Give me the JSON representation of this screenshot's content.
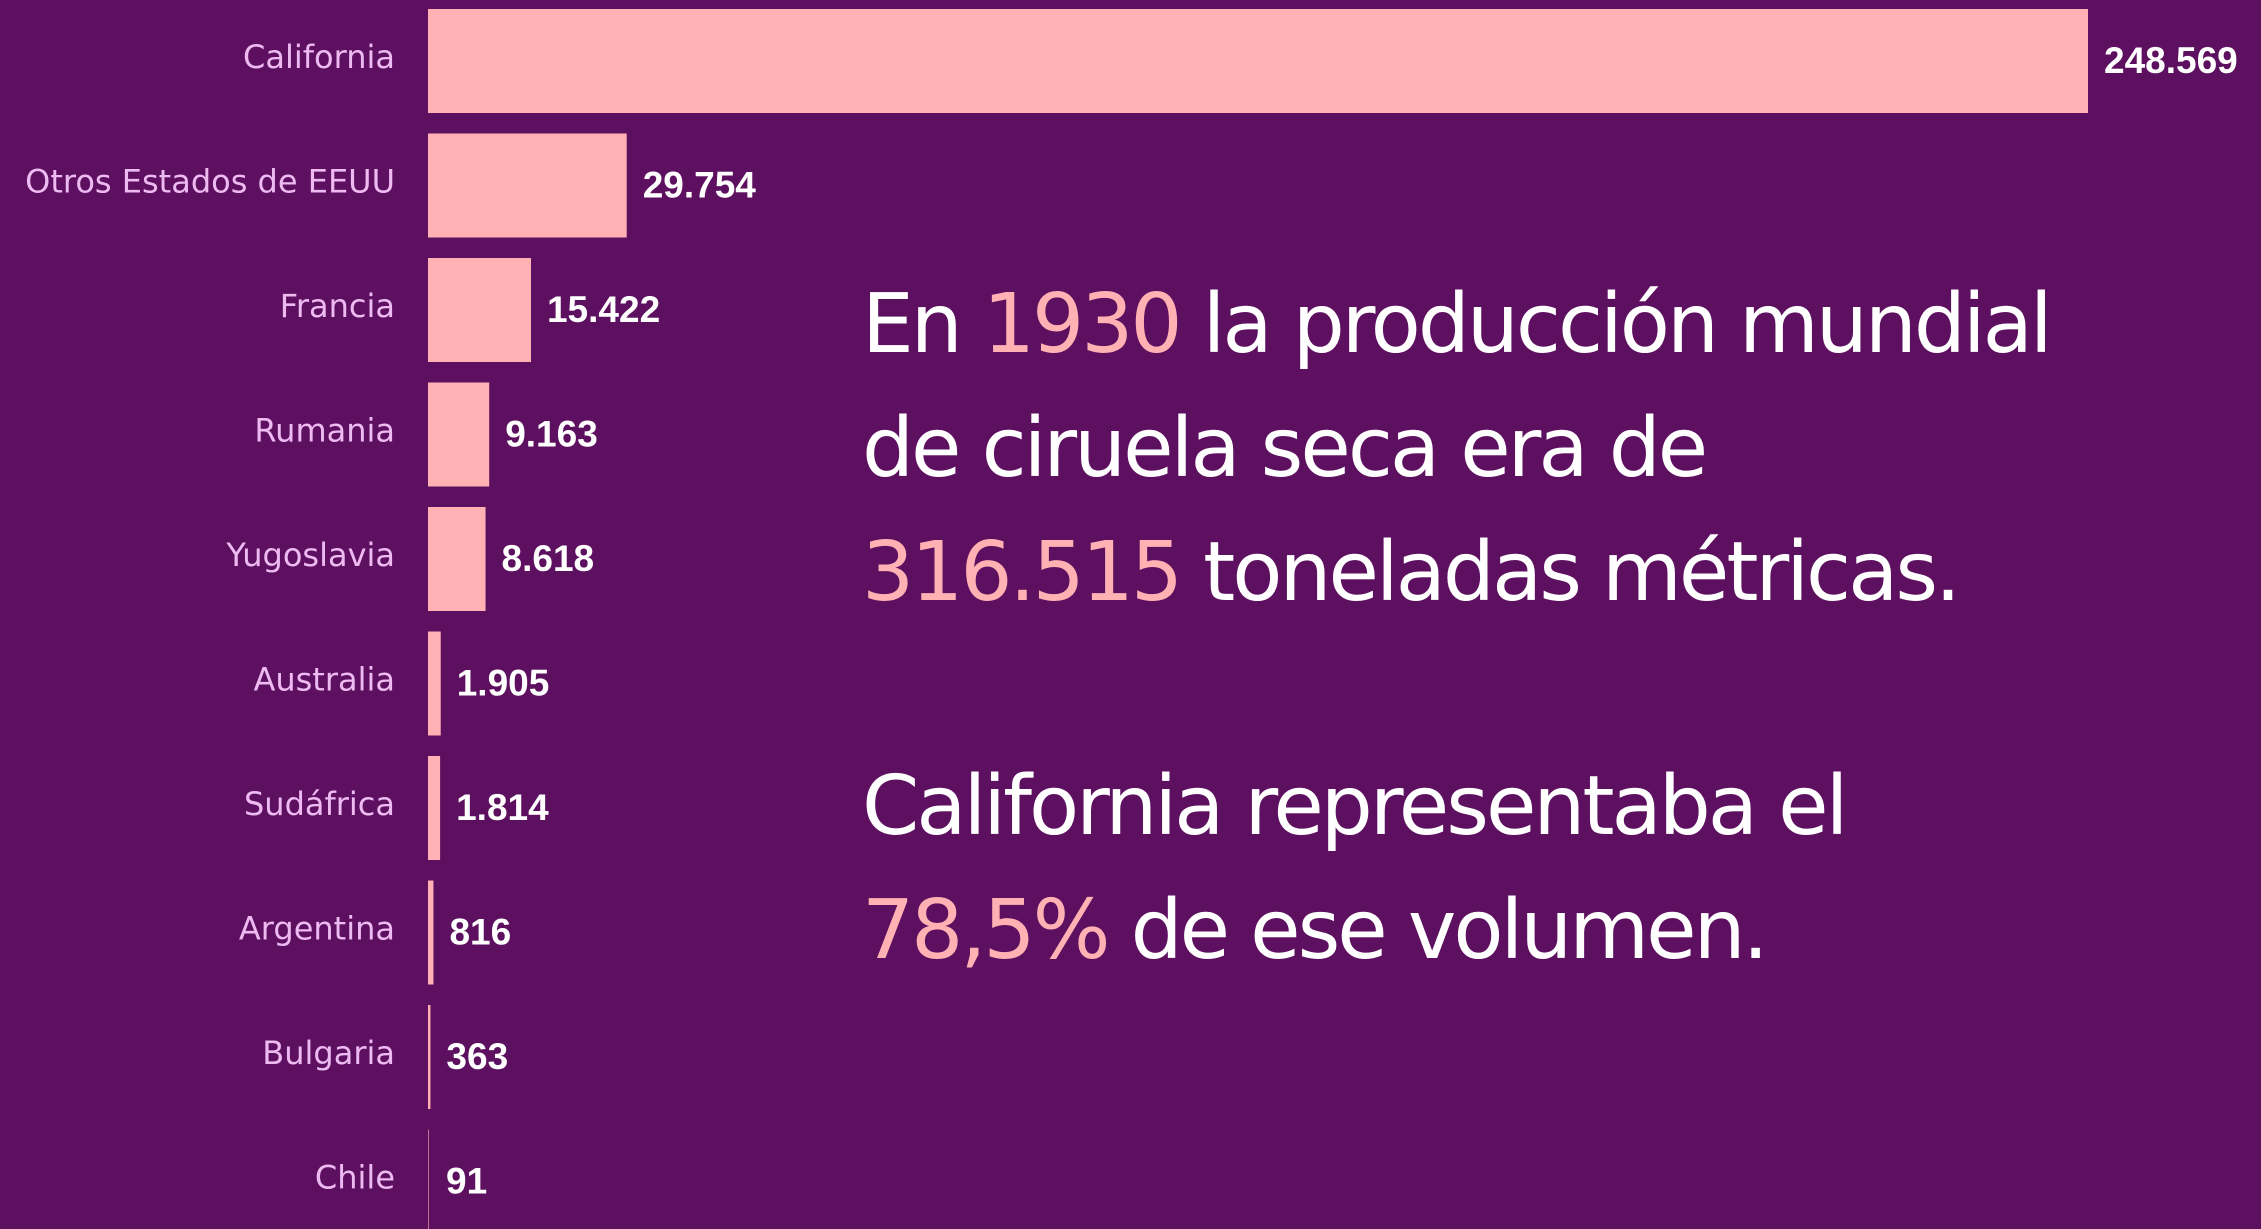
{
  "chart_data": {
    "type": "hbar",
    "categories": [
      "California",
      "Otros Estados de EEUU",
      "Francia",
      "Rumania",
      "Yugoslavia",
      "Australia",
      "Sudáfrica",
      "Argentina",
      "Bulgaria",
      "Chile"
    ],
    "values": [
      248569,
      29754,
      15422,
      9163,
      8618,
      1905,
      1814,
      816,
      363,
      91
    ],
    "value_labels": [
      "248.569",
      "29.754",
      "15.422",
      "9.163",
      "8.618",
      "1.905",
      "1.814",
      "816",
      "363",
      "91"
    ],
    "color": "#ffb1b3",
    "annotations": [
      [
        [
          {
            "text": "En ",
            "color": "#ffffff"
          },
          {
            "text": "1930",
            "color": "#ffb1b3"
          },
          {
            "text": " la producción mundial",
            "color": "#ffffff"
          }
        ],
        [
          {
            "text": "de ciruela seca era de",
            "color": "#ffffff"
          }
        ],
        [
          {
            "text": "316.515",
            "color": "#ffb1b3"
          },
          {
            "text": " toneladas métricas.",
            "color": "#ffffff"
          }
        ]
      ],
      [
        [
          {
            "text": "California representaba el",
            "color": "#ffffff"
          }
        ],
        [
          {
            "text": "78,5%",
            "color": "#ffb1b3"
          },
          {
            "text": " de ese volumen.",
            "color": "#ffffff"
          }
        ]
      ]
    ]
  }
}
